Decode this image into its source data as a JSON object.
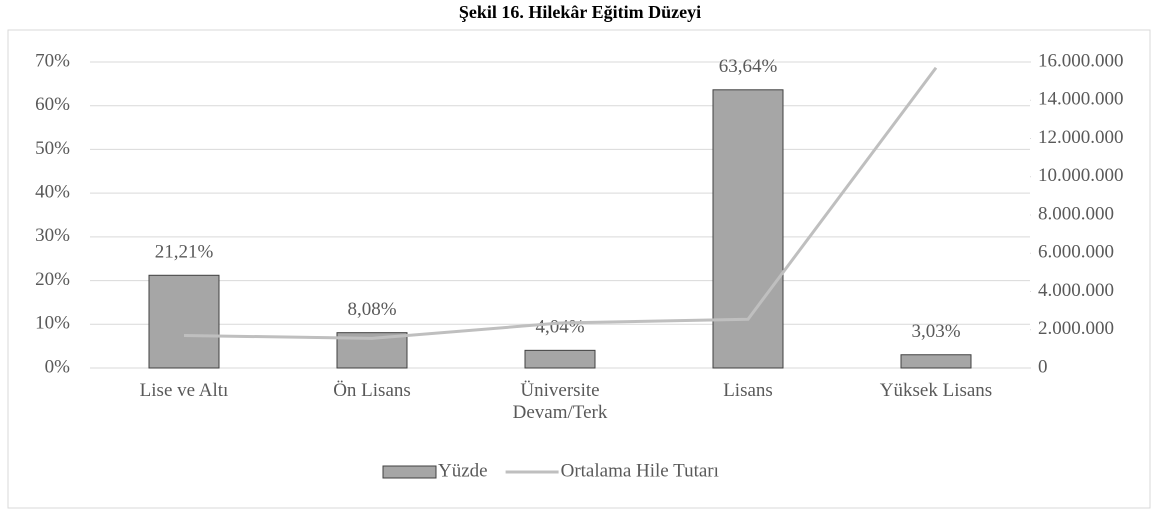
{
  "chart_data": {
    "type": "combo",
    "title": "Şekil 16. Hilekâr Eğitim Düzeyi",
    "categories": [
      "Lise ve Altı",
      "Ön Lisans",
      "Üniversite Devam/Terk",
      "Lisans",
      "Yüksek Lisans"
    ],
    "series": [
      {
        "name": "Yüzde",
        "type": "bar",
        "color": "#a6a6a6",
        "values": [
          21.21,
          8.08,
          4.04,
          63.64,
          3.03
        ],
        "value_labels": [
          "21,21%",
          "8,08%",
          "4,04%",
          "63,64%",
          "3,03%"
        ]
      },
      {
        "name": "Ortalama Hile Tutarı",
        "type": "line",
        "axis": "y2",
        "color": "#bfbfbf",
        "values": [
          1700000,
          1550000,
          2350000,
          2550000,
          15700000
        ]
      }
    ],
    "ylim": [
      0,
      70
    ],
    "yticks": [
      {
        "value": 0,
        "label": "0%"
      },
      {
        "value": 10,
        "label": "10%"
      },
      {
        "value": 20,
        "label": "20%"
      },
      {
        "value": 30,
        "label": "30%"
      },
      {
        "value": 40,
        "label": "40%"
      },
      {
        "value": 50,
        "label": "50%"
      },
      {
        "value": 60,
        "label": "60%"
      },
      {
        "value": 70,
        "label": "70%"
      }
    ],
    "y2lim": [
      0,
      16000000
    ],
    "y2ticks": [
      0,
      {
        "value": 2000000,
        "label": "2.000.000"
      },
      {
        "value": 4000000,
        "label": "4.000.000"
      },
      {
        "value": 6000000,
        "label": "6.000.000"
      },
      {
        "value": 8000000,
        "label": "8.000.000"
      },
      {
        "value": 10000000,
        "label": "10.000.000"
      },
      {
        "value": 12000000,
        "label": "12.000.000"
      },
      {
        "value": 14000000,
        "label": "14.000.000"
      },
      {
        "value": 16000000,
        "label": "16.000.000"
      }
    ],
    "grid": true,
    "legend": "bottom"
  }
}
